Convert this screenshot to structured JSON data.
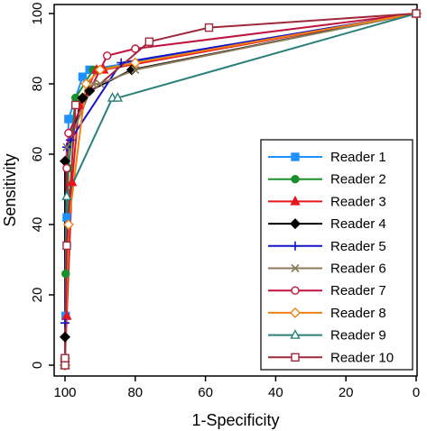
{
  "chart_data": {
    "type": "line",
    "title": "",
    "xlabel": "1-Specificity",
    "ylabel": "Sensitivity",
    "xlim": [
      100,
      0
    ],
    "ylim": [
      0,
      100
    ],
    "x_ticks": [
      100,
      80,
      60,
      40,
      20,
      0
    ],
    "y_ticks": [
      0,
      20,
      40,
      60,
      80,
      100
    ],
    "grid": false,
    "legend_position": "bottom-right",
    "series": [
      {
        "name": "Reader 1",
        "color": "#1E90FF",
        "marker": "square-filled",
        "x": [
          100,
          100,
          99.8,
          99.5,
          99,
          95,
          93,
          0
        ],
        "y": [
          0,
          2,
          14,
          42,
          70,
          82,
          84,
          100
        ]
      },
      {
        "name": "Reader 2",
        "color": "#1A8F2C",
        "marker": "circle-filled",
        "x": [
          100,
          100,
          99.8,
          99,
          97,
          92,
          91,
          0
        ],
        "y": [
          0,
          2,
          26,
          56,
          76,
          84,
          84,
          100
        ]
      },
      {
        "name": "Reader 3",
        "color": "#E8141E",
        "marker": "triangle-filled",
        "x": [
          100,
          100,
          99.5,
          98,
          96,
          91,
          89,
          0
        ],
        "y": [
          0,
          2,
          14,
          52,
          74,
          84,
          84,
          100
        ]
      },
      {
        "name": "Reader 4",
        "color": "#000000",
        "marker": "diamond-filled",
        "x": [
          100,
          100,
          100,
          95,
          93,
          81,
          0
        ],
        "y": [
          0,
          8,
          58,
          76,
          78,
          84,
          100
        ]
      },
      {
        "name": "Reader 5",
        "color": "#1414C8",
        "marker": "plus",
        "x": [
          100,
          100,
          99.5,
          98.5,
          84,
          0
        ],
        "y": [
          0,
          12,
          62,
          64,
          86,
          100
        ]
      },
      {
        "name": "Reader 6",
        "color": "#8B7B5A",
        "marker": "cross",
        "x": [
          100,
          100,
          99.5,
          92,
          90,
          80,
          0
        ],
        "y": [
          0,
          2,
          62,
          80,
          80,
          84,
          100
        ]
      },
      {
        "name": "Reader 7",
        "color": "#C0143C",
        "marker": "circle-hollow",
        "x": [
          100,
          100,
          99.5,
          99,
          88,
          80,
          0
        ],
        "y": [
          0,
          2,
          56,
          66,
          88,
          90,
          100
        ]
      },
      {
        "name": "Reader 8",
        "color": "#F08214",
        "marker": "diamond-hollow",
        "x": [
          100,
          100,
          99,
          94,
          90,
          80,
          0
        ],
        "y": [
          0,
          2,
          40,
          80,
          84,
          86,
          100
        ]
      },
      {
        "name": "Reader 9",
        "color": "#2A7F7A",
        "marker": "triangle-hollow",
        "x": [
          100,
          100,
          99.5,
          86.5,
          85,
          0
        ],
        "y": [
          0,
          2,
          48,
          76,
          76,
          100
        ]
      },
      {
        "name": "Reader 10",
        "color": "#A0283C",
        "marker": "square-hollow",
        "x": [
          100,
          100,
          99.5,
          97,
          76,
          59,
          0
        ],
        "y": [
          0,
          2,
          34,
          74,
          92,
          96,
          100
        ]
      }
    ]
  }
}
